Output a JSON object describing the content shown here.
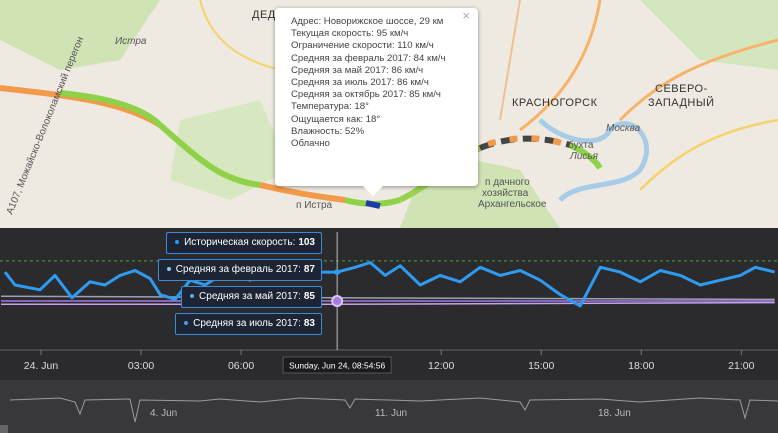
{
  "map": {
    "labels": [
      "ДЕДОВСК",
      "Истра",
      "А107, Можайско-Волоколамский перегон",
      "КРАСНОГОРСК",
      "СЕВЕРО-",
      "ЗАПАДНЫЙ",
      "п Истра",
      "п дачного",
      "хозяйства",
      "Архангельское",
      "бухта",
      "Лисья",
      "Москва"
    ]
  },
  "popup": {
    "close": "×",
    "lines": [
      "Адрес: Новорижское шоссе, 29 км",
      "Текущая скорость: 95 км/ч",
      "Ограничение скорости: 110 км/ч",
      "Средняя за февраль 2017: 84 км/ч",
      "Средняя за май 2017: 86 км/ч",
      "Средняя за июль 2017: 86 км/ч",
      "Средняя за октябрь 2017: 85 км/ч",
      "Температура: 18°",
      "Ощущается как: 18°",
      "Влажность: 52%",
      "Облачно"
    ]
  },
  "chart_data": {
    "type": "line",
    "xlim": [
      -1.23,
      22.1
    ],
    "ylim": [
      57,
      128
    ],
    "xticks": [
      {
        "value": 0,
        "label": "24. Jun"
      },
      {
        "value": 3,
        "label": "03:00"
      },
      {
        "value": 6,
        "label": "06:00"
      },
      {
        "value": 12,
        "label": "12:00"
      },
      {
        "value": 15,
        "label": "15:00"
      },
      {
        "value": 18,
        "label": "18:00"
      },
      {
        "value": 21,
        "label": "21:00"
      }
    ],
    "reference_line": {
      "value": 110,
      "color": "#3ea33e"
    },
    "crosshair_label": "Sunday, Jun 24, 08:54:56",
    "series": [
      {
        "name": "Историческая скорость:",
        "color": "#2e9bf0",
        "x": [
          -1.08,
          -0.78,
          -0.03,
          0.42,
          0.93,
          1.47,
          1.92,
          2.37,
          2.82,
          3.27,
          3.57,
          4.02,
          4.47,
          4.92,
          5.37,
          5.82,
          6.27,
          6.72,
          7.32,
          7.92,
          8.37,
          8.88,
          9.42,
          9.87,
          10.32,
          10.77,
          11.37,
          11.97,
          12.57,
          13.17,
          13.77,
          14.37,
          14.97,
          15.57,
          16.17,
          16.77,
          17.37,
          17.97,
          18.57,
          19.17,
          19.77,
          20.37,
          20.97,
          21.42,
          22.0
        ],
        "values": [
          103,
          95,
          92,
          101,
          87,
          97,
          95,
          101,
          104,
          99,
          89,
          86,
          98,
          95,
          101,
          104,
          98,
          103,
          104,
          101,
          103,
          103,
          106,
          109,
          101,
          107,
          95,
          101,
          97,
          106,
          101,
          104,
          98,
          89,
          82,
          106,
          103,
          97,
          104,
          101,
          95,
          98,
          101,
          106,
          103
        ]
      },
      {
        "name": "Средняя за февраль 2017:",
        "color": "#9aa3b5",
        "x": [
          -1.2,
          8.88,
          22.0
        ],
        "values": [
          88,
          87,
          86
        ]
      },
      {
        "name": "Средняя за май 2017:",
        "color": "#a57be0",
        "x": [
          -1.2,
          8.88,
          22.0
        ],
        "values": [
          85,
          85,
          85
        ]
      },
      {
        "name": "Средняя за июль 2017:",
        "color": "#c8a2f0",
        "x": [
          -1.2,
          8.88,
          22.0
        ],
        "values": [
          83,
          83,
          84
        ]
      }
    ]
  },
  "navigator": {
    "labels": [
      "4. Jun",
      "11. Jun",
      "18. Jun"
    ]
  }
}
